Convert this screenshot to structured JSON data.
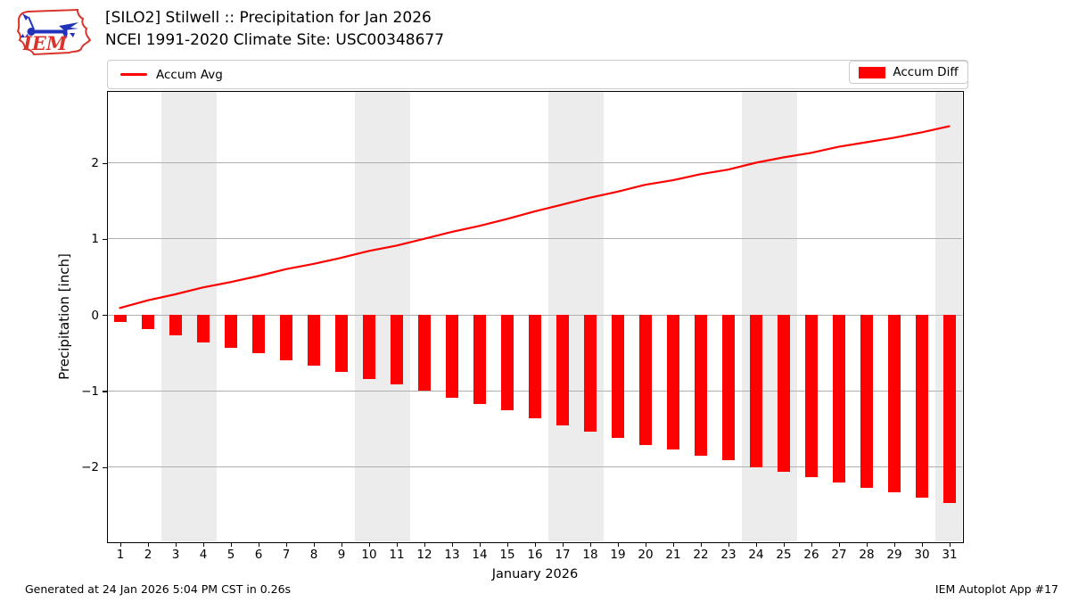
{
  "header": {
    "logo_text": "IEM",
    "title_line1": "[SILO2] Stilwell :: Precipitation for Jan 2026",
    "title_line2": "NCEI 1991-2020 Climate Site: USC00348677"
  },
  "legend": {
    "avg_label": "Accum Avg",
    "diff_label": "Accum Diff"
  },
  "footer": {
    "left": "Generated at 24 Jan 2026 5:04 PM CST in 0.26s",
    "right": "IEM Autoplot App #17"
  },
  "colors": {
    "series_red": "#ff0000",
    "weekend_band": "#ececec",
    "gridline": "#b0b0b0",
    "legend_border": "#cccccc",
    "plot_border": "#000000",
    "logo_red": "#d9342b",
    "logo_blue": "#2233bb"
  },
  "chart_data": {
    "type": "bar",
    "title": "[SILO2] Stilwell :: Precipitation for Jan 2026 — NCEI 1991-2020 Climate Site: USC00348677",
    "xlabel": "January 2026",
    "ylabel": "Precipitation [inch]",
    "x": [
      1,
      2,
      3,
      4,
      5,
      6,
      7,
      8,
      9,
      10,
      11,
      12,
      13,
      14,
      15,
      16,
      17,
      18,
      19,
      20,
      21,
      22,
      23,
      24,
      25,
      26,
      27,
      28,
      29,
      30,
      31
    ],
    "series": [
      {
        "name": "Accum Avg",
        "render": "line",
        "color": "#ff0000",
        "values": [
          0.09,
          0.19,
          0.27,
          0.36,
          0.43,
          0.51,
          0.6,
          0.67,
          0.75,
          0.84,
          0.91,
          1.0,
          1.09,
          1.17,
          1.26,
          1.36,
          1.45,
          1.54,
          1.62,
          1.71,
          1.77,
          1.85,
          1.91,
          2.0,
          2.07,
          2.13,
          2.21,
          2.27,
          2.33,
          2.4,
          2.48
        ]
      },
      {
        "name": "Accum Diff",
        "render": "bar",
        "color": "#ff0000",
        "values": [
          -0.09,
          -0.19,
          -0.27,
          -0.36,
          -0.43,
          -0.51,
          -0.6,
          -0.67,
          -0.75,
          -0.84,
          -0.91,
          -1.0,
          -1.09,
          -1.17,
          -1.26,
          -1.36,
          -1.45,
          -1.54,
          -1.62,
          -1.71,
          -1.77,
          -1.85,
          -1.91,
          -2.0,
          -2.07,
          -2.13,
          -2.21,
          -2.27,
          -2.33,
          -2.4,
          -2.48
        ]
      }
    ],
    "ylim": [
      -3.0,
      2.93
    ],
    "yticks": [
      {
        "value": 2,
        "label": "2"
      },
      {
        "value": 1,
        "label": "1"
      },
      {
        "value": 0,
        "label": "0"
      },
      {
        "value": -1,
        "label": "−1"
      },
      {
        "value": -2,
        "label": "−2"
      }
    ],
    "xticks": [
      1,
      2,
      3,
      4,
      5,
      6,
      7,
      8,
      9,
      10,
      11,
      12,
      13,
      14,
      15,
      16,
      17,
      18,
      19,
      20,
      21,
      22,
      23,
      24,
      25,
      26,
      27,
      28,
      29,
      30,
      31
    ],
    "weekend_bands_days": [
      [
        2.5,
        4.5
      ],
      [
        9.5,
        11.5
      ],
      [
        16.5,
        18.5
      ],
      [
        23.5,
        25.5
      ],
      [
        30.5,
        31.6
      ]
    ],
    "grid": true,
    "legend_position": "top"
  }
}
